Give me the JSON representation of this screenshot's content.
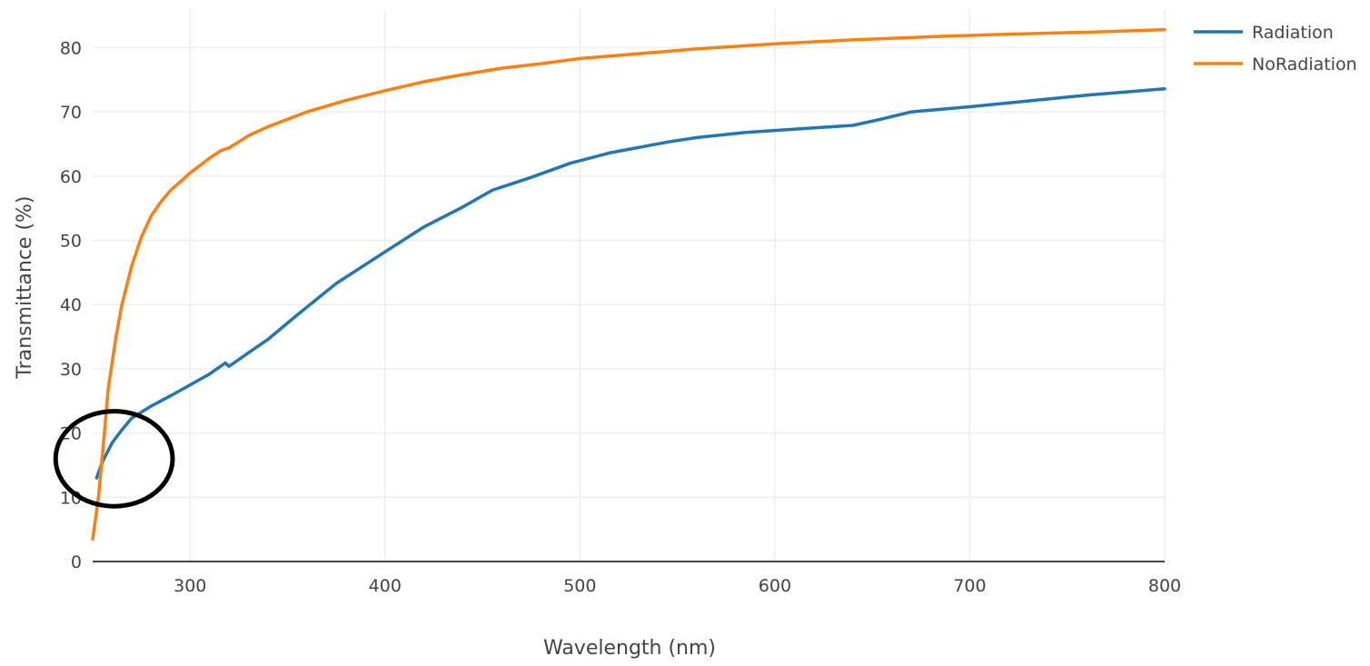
{
  "chart_data": {
    "type": "line",
    "title": "",
    "xlabel": "Wavelength (nm)",
    "ylabel": "Transmittance (%)",
    "xlim": [
      250,
      800
    ],
    "ylim": [
      0,
      86
    ],
    "x_ticks": [
      300,
      400,
      500,
      600,
      700,
      800
    ],
    "y_ticks": [
      0,
      10,
      20,
      30,
      40,
      50,
      60,
      70,
      80
    ],
    "grid": true,
    "legend_position": "top-right",
    "annotations": [
      {
        "type": "circle",
        "description": "highlight",
        "x": 261,
        "y": 16,
        "rx_data": 30,
        "ry_data": 7.4
      }
    ],
    "series": [
      {
        "name": "Radiation",
        "color": "#1f77b4",
        "points": [
          [
            252,
            13
          ],
          [
            255,
            15.5
          ],
          [
            260,
            18.5
          ],
          [
            265,
            20.5
          ],
          [
            270,
            22.3
          ],
          [
            280,
            24.2
          ],
          [
            290,
            25.8
          ],
          [
            300,
            27.5
          ],
          [
            310,
            29.2
          ],
          [
            318,
            30.9
          ],
          [
            320,
            30.4
          ],
          [
            330,
            32.5
          ],
          [
            340,
            34.6
          ],
          [
            355,
            38.4
          ],
          [
            375,
            43.3
          ],
          [
            400,
            48.2
          ],
          [
            420,
            52.1
          ],
          [
            440,
            55.2
          ],
          [
            455,
            57.8
          ],
          [
            475,
            59.8
          ],
          [
            495,
            62
          ],
          [
            515,
            63.6
          ],
          [
            545,
            65.3
          ],
          [
            560,
            66
          ],
          [
            585,
            66.8
          ],
          [
            600,
            67.1
          ],
          [
            620,
            67.5
          ],
          [
            640,
            67.9
          ],
          [
            655,
            68.9
          ],
          [
            670,
            70
          ],
          [
            700,
            70.8
          ],
          [
            730,
            71.7
          ],
          [
            760,
            72.6
          ],
          [
            800,
            73.6
          ]
        ]
      },
      {
        "name": "NoRadiation",
        "color": "#ff7f0e",
        "points": [
          [
            250,
            3.5
          ],
          [
            253,
            10
          ],
          [
            256,
            20
          ],
          [
            258,
            27
          ],
          [
            262,
            35
          ],
          [
            265,
            40
          ],
          [
            270,
            46
          ],
          [
            275,
            50.5
          ],
          [
            280,
            53.8
          ],
          [
            285,
            56
          ],
          [
            290,
            57.8
          ],
          [
            300,
            60.5
          ],
          [
            310,
            62.8
          ],
          [
            316,
            64
          ],
          [
            320,
            64.4
          ],
          [
            330,
            66.3
          ],
          [
            340,
            67.7
          ],
          [
            360,
            70
          ],
          [
            380,
            71.8
          ],
          [
            400,
            73.3
          ],
          [
            420,
            74.7
          ],
          [
            440,
            75.8
          ],
          [
            460,
            76.8
          ],
          [
            480,
            77.5
          ],
          [
            500,
            78.3
          ],
          [
            520,
            78.8
          ],
          [
            540,
            79.3
          ],
          [
            560,
            79.8
          ],
          [
            580,
            80.2
          ],
          [
            600,
            80.6
          ],
          [
            640,
            81.2
          ],
          [
            680,
            81.7
          ],
          [
            720,
            82.1
          ],
          [
            760,
            82.4
          ],
          [
            800,
            82.8
          ]
        ]
      }
    ]
  }
}
